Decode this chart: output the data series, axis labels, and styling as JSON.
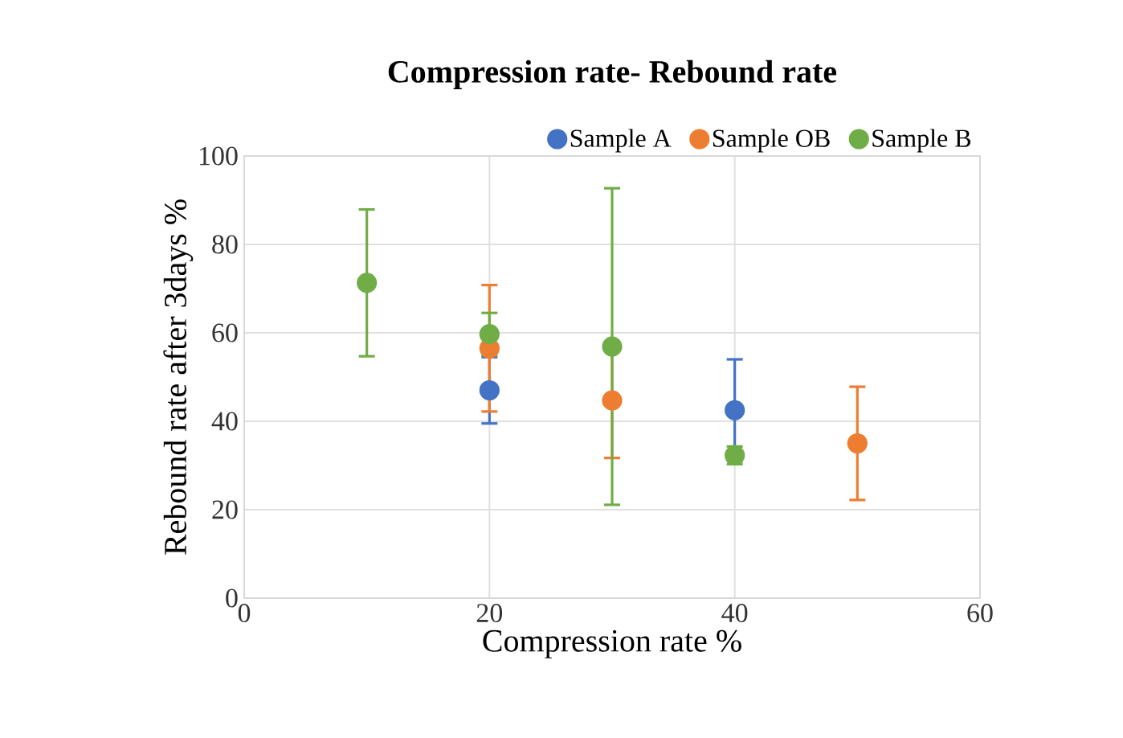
{
  "chart_data": {
    "type": "scatter",
    "title": "Compression rate- Rebound rate",
    "xlabel": "Compression rate %",
    "ylabel": "Rebound rate after 3days %",
    "xlim": [
      0,
      60
    ],
    "xticks": [
      0,
      20,
      40,
      60
    ],
    "ylim": [
      0,
      100
    ],
    "yticks": [
      0,
      20,
      40,
      60,
      80,
      100
    ],
    "grid": true,
    "legend": "top right",
    "marker": "circle",
    "series": [
      {
        "name": "Sample A",
        "color": "#4472c4",
        "x": [
          20,
          40
        ],
        "values": [
          47,
          42.5
        ],
        "errors": [
          7.5,
          11.5
        ]
      },
      {
        "name": "Sample OB",
        "color": "#ed7d31",
        "x": [
          20,
          30,
          50
        ],
        "values": [
          56.5,
          44.7,
          35
        ],
        "errors": [
          14.3,
          13,
          12.8
        ]
      },
      {
        "name": "Sample B",
        "color": "#70ad47",
        "x": [
          10,
          20,
          30,
          40
        ],
        "values": [
          71.3,
          59.7,
          56.9,
          32.3
        ],
        "errors": [
          16.6,
          4.8,
          35.8,
          2
        ]
      }
    ]
  }
}
